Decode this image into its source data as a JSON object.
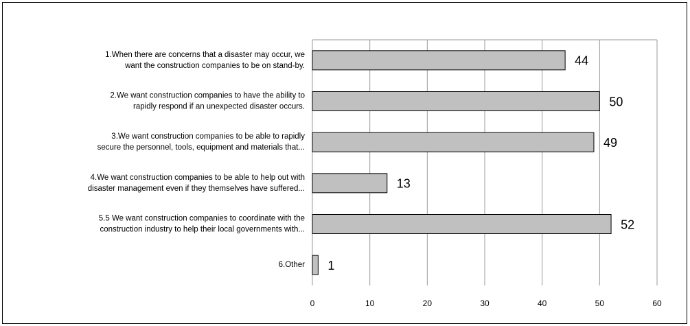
{
  "chart_data": {
    "type": "hbar",
    "categories": [
      [
        "1.When there are concerns that a disaster may occur, we",
        "want the construction companies to be on stand-by."
      ],
      [
        "2.We want construction companies to have the ability to",
        "rapidly respond if an unexpected disaster occurs."
      ],
      [
        "3.We want construction companies to be able to rapidly",
        "secure the personnel, tools, equipment and materials that..."
      ],
      [
        "4.We want construction companies to be able to help out with",
        "disaster management even if they themselves have suffered..."
      ],
      [
        "5.5 We want construction companies to coordinate with the",
        "construction industry to help their local governments with..."
      ],
      [
        "6.Other"
      ]
    ],
    "values": [
      44,
      50,
      49,
      13,
      52,
      1
    ],
    "color": "#c0c0c0",
    "xlim": [
      0,
      60
    ],
    "xticks": [
      0,
      10,
      20,
      30,
      40,
      50,
      60
    ],
    "grid": true
  }
}
